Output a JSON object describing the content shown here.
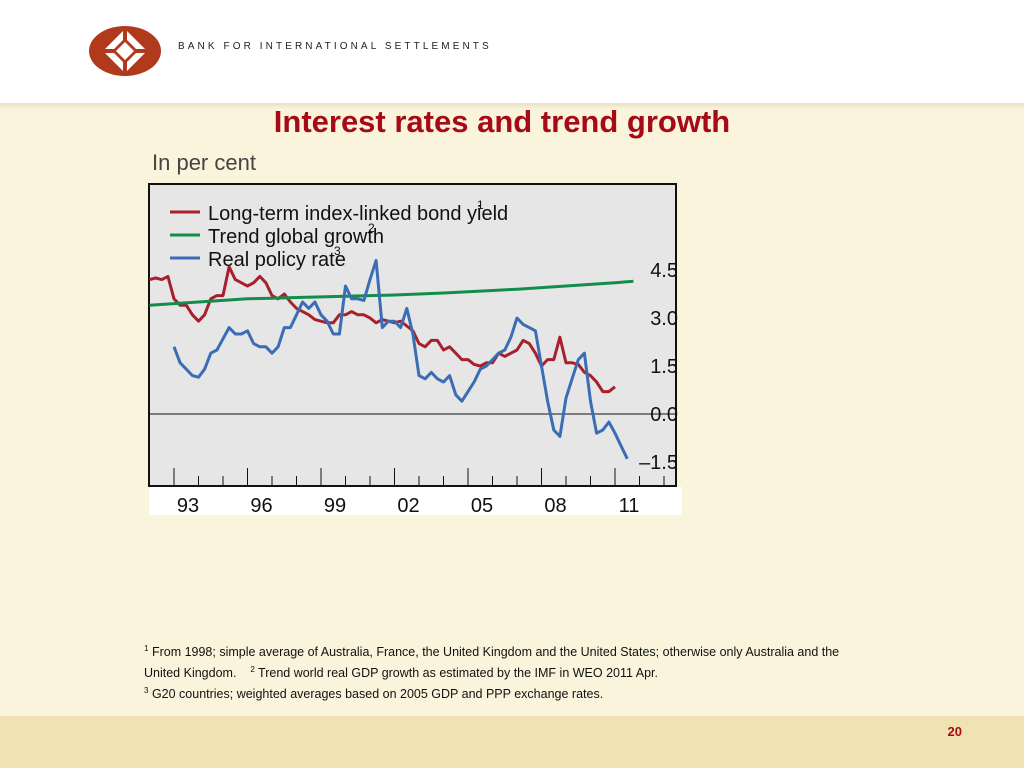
{
  "header": {
    "org_name": "BANK FOR INTERNATIONAL SETTLEMENTS"
  },
  "slide": {
    "title": "Interest rates and trend growth",
    "subtitle": "In per cent",
    "page_number": "20"
  },
  "colors": {
    "title": "#a50a16",
    "logo": "#b23a1c",
    "background": "#fbf4dc",
    "plot_bg": "#e6e6e6"
  },
  "footnotes": {
    "fn1_mark": "1",
    "fn1_text": "From 1998; simple average of Australia, France, the United Kingdom and the United States; otherwise only Australia and the United Kingdom.",
    "fn2_mark": "2",
    "fn2_text": "Trend world real GDP growth as estimated by the IMF in WEO 2011 Apr.",
    "fn3_mark": "3",
    "fn3_text": "G20 countries; weighted averages based on 2005 GDP and PPP exchange rates."
  },
  "chart_data": {
    "type": "line",
    "x_unit": "year",
    "x_ticks": [
      {
        "value": 1993,
        "label": "93"
      },
      {
        "value": 1996,
        "label": "96"
      },
      {
        "value": 1999,
        "label": "99"
      },
      {
        "value": 2002,
        "label": "02"
      },
      {
        "value": 2005,
        "label": "05"
      },
      {
        "value": 2008,
        "label": "08"
      },
      {
        "value": 2011,
        "label": "11"
      }
    ],
    "y_ticks": [
      {
        "value": 4.5,
        "label": "4.5"
      },
      {
        "value": 3.0,
        "label": "3.0"
      },
      {
        "value": 1.5,
        "label": "1.5"
      },
      {
        "value": 0.0,
        "label": "0.0"
      },
      {
        "value": -1.5,
        "label": "–1.5"
      }
    ],
    "xlim": [
      1992.0,
      2014.0
    ],
    "ylim": [
      -2.2,
      7.3
    ],
    "zero_line": true,
    "legend_position": "top-left",
    "series": [
      {
        "name": "Long-term index-linked bond yield",
        "footnote": "1",
        "color": "#a8202e",
        "points": [
          [
            1992.0,
            4.2
          ],
          [
            1992.25,
            4.25
          ],
          [
            1992.5,
            4.2
          ],
          [
            1992.75,
            4.3
          ],
          [
            1993.0,
            3.6
          ],
          [
            1993.25,
            3.4
          ],
          [
            1993.5,
            3.4
          ],
          [
            1993.75,
            3.1
          ],
          [
            1994.0,
            2.9
          ],
          [
            1994.25,
            3.1
          ],
          [
            1994.5,
            3.6
          ],
          [
            1994.75,
            3.7
          ],
          [
            1995.0,
            3.7
          ],
          [
            1995.25,
            4.6
          ],
          [
            1995.5,
            4.2
          ],
          [
            1995.75,
            4.1
          ],
          [
            1996.0,
            4.0
          ],
          [
            1996.25,
            4.1
          ],
          [
            1996.5,
            4.3
          ],
          [
            1996.75,
            4.1
          ],
          [
            1997.0,
            3.7
          ],
          [
            1997.25,
            3.6
          ],
          [
            1997.5,
            3.75
          ],
          [
            1997.75,
            3.5
          ],
          [
            1998.0,
            3.3
          ],
          [
            1998.25,
            3.2
          ],
          [
            1998.5,
            3.1
          ],
          [
            1998.75,
            2.95
          ],
          [
            1999.0,
            2.9
          ],
          [
            1999.25,
            2.85
          ],
          [
            1999.5,
            2.85
          ],
          [
            1999.75,
            3.1
          ],
          [
            2000.0,
            3.1
          ],
          [
            2000.25,
            3.2
          ],
          [
            2000.5,
            3.1
          ],
          [
            2000.75,
            3.1
          ],
          [
            2001.0,
            3.0
          ],
          [
            2001.25,
            2.85
          ],
          [
            2001.5,
            2.95
          ],
          [
            2001.75,
            2.9
          ],
          [
            2002.0,
            2.85
          ],
          [
            2002.25,
            2.9
          ],
          [
            2002.5,
            2.75
          ],
          [
            2002.75,
            2.6
          ],
          [
            2003.0,
            2.2
          ],
          [
            2003.25,
            2.1
          ],
          [
            2003.5,
            2.3
          ],
          [
            2003.75,
            2.3
          ],
          [
            2004.0,
            2.0
          ],
          [
            2004.25,
            2.1
          ],
          [
            2004.5,
            1.9
          ],
          [
            2004.75,
            1.7
          ],
          [
            2005.0,
            1.7
          ],
          [
            2005.25,
            1.55
          ],
          [
            2005.5,
            1.5
          ],
          [
            2005.75,
            1.6
          ],
          [
            2006.0,
            1.6
          ],
          [
            2006.25,
            1.9
          ],
          [
            2006.5,
            1.8
          ],
          [
            2006.75,
            1.9
          ],
          [
            2007.0,
            2.0
          ],
          [
            2007.25,
            2.3
          ],
          [
            2007.5,
            2.2
          ],
          [
            2007.75,
            1.9
          ],
          [
            2008.0,
            1.5
          ],
          [
            2008.25,
            1.7
          ],
          [
            2008.5,
            1.7
          ],
          [
            2008.75,
            2.4
          ],
          [
            2009.0,
            1.6
          ],
          [
            2009.25,
            1.6
          ],
          [
            2009.5,
            1.55
          ],
          [
            2009.75,
            1.3
          ],
          [
            2010.0,
            1.2
          ],
          [
            2010.25,
            1.0
          ],
          [
            2010.5,
            0.7
          ],
          [
            2010.75,
            0.7
          ],
          [
            2011.0,
            0.85
          ]
        ]
      },
      {
        "name": "Trend global growth",
        "footnote": "2",
        "color": "#138d4a",
        "points": [
          [
            1992.0,
            3.4
          ],
          [
            1993.0,
            3.45
          ],
          [
            1994.0,
            3.5
          ],
          [
            1995.0,
            3.55
          ],
          [
            1996.0,
            3.6
          ],
          [
            1997.0,
            3.62
          ],
          [
            1998.0,
            3.64
          ],
          [
            1999.0,
            3.66
          ],
          [
            2000.0,
            3.68
          ],
          [
            2001.0,
            3.7
          ],
          [
            2002.0,
            3.72
          ],
          [
            2003.0,
            3.75
          ],
          [
            2004.0,
            3.78
          ],
          [
            2005.0,
            3.82
          ],
          [
            2006.0,
            3.86
          ],
          [
            2007.0,
            3.9
          ],
          [
            2008.0,
            3.95
          ],
          [
            2009.0,
            4.0
          ],
          [
            2010.0,
            4.05
          ],
          [
            2011.0,
            4.1
          ],
          [
            2011.75,
            4.15
          ]
        ]
      },
      {
        "name": "Real policy rate",
        "footnote": "3",
        "color": "#3a6db5",
        "points": [
          [
            1993.0,
            2.1
          ],
          [
            1993.25,
            1.6
          ],
          [
            1993.5,
            1.4
          ],
          [
            1993.75,
            1.2
          ],
          [
            1994.0,
            1.15
          ],
          [
            1994.25,
            1.4
          ],
          [
            1994.5,
            1.9
          ],
          [
            1994.75,
            2.0
          ],
          [
            1995.0,
            2.35
          ],
          [
            1995.25,
            2.7
          ],
          [
            1995.5,
            2.5
          ],
          [
            1995.75,
            2.5
          ],
          [
            1996.0,
            2.6
          ],
          [
            1996.25,
            2.2
          ],
          [
            1996.5,
            2.1
          ],
          [
            1996.75,
            2.1
          ],
          [
            1997.0,
            1.9
          ],
          [
            1997.25,
            2.1
          ],
          [
            1997.5,
            2.7
          ],
          [
            1997.75,
            2.7
          ],
          [
            1998.0,
            3.1
          ],
          [
            1998.25,
            3.5
          ],
          [
            1998.5,
            3.3
          ],
          [
            1998.75,
            3.5
          ],
          [
            1999.0,
            3.1
          ],
          [
            1999.25,
            2.9
          ],
          [
            1999.5,
            2.5
          ],
          [
            1999.75,
            2.5
          ],
          [
            2000.0,
            4.0
          ],
          [
            2000.25,
            3.6
          ],
          [
            2000.5,
            3.6
          ],
          [
            2000.75,
            3.55
          ],
          [
            2001.0,
            4.2
          ],
          [
            2001.25,
            4.8
          ],
          [
            2001.5,
            2.7
          ],
          [
            2001.75,
            2.9
          ],
          [
            2002.0,
            2.9
          ],
          [
            2002.25,
            2.7
          ],
          [
            2002.5,
            3.3
          ],
          [
            2002.75,
            2.5
          ],
          [
            2003.0,
            1.2
          ],
          [
            2003.25,
            1.1
          ],
          [
            2003.5,
            1.3
          ],
          [
            2003.75,
            1.1
          ],
          [
            2004.0,
            1.0
          ],
          [
            2004.25,
            1.2
          ],
          [
            2004.5,
            0.6
          ],
          [
            2004.75,
            0.4
          ],
          [
            2005.0,
            0.7
          ],
          [
            2005.25,
            1.0
          ],
          [
            2005.5,
            1.4
          ],
          [
            2005.75,
            1.5
          ],
          [
            2006.0,
            1.7
          ],
          [
            2006.25,
            1.9
          ],
          [
            2006.5,
            2.0
          ],
          [
            2006.75,
            2.4
          ],
          [
            2007.0,
            3.0
          ],
          [
            2007.25,
            2.8
          ],
          [
            2007.5,
            2.7
          ],
          [
            2007.75,
            2.6
          ],
          [
            2008.0,
            1.5
          ],
          [
            2008.25,
            0.4
          ],
          [
            2008.5,
            -0.5
          ],
          [
            2008.75,
            -0.7
          ],
          [
            2009.0,
            0.5
          ],
          [
            2009.25,
            1.1
          ],
          [
            2009.5,
            1.7
          ],
          [
            2009.75,
            1.9
          ],
          [
            2010.0,
            0.4
          ],
          [
            2010.25,
            -0.6
          ],
          [
            2010.5,
            -0.5
          ],
          [
            2010.75,
            -0.25
          ],
          [
            2011.0,
            -0.6
          ],
          [
            2011.25,
            -1.0
          ],
          [
            2011.5,
            -1.4
          ]
        ]
      }
    ]
  }
}
